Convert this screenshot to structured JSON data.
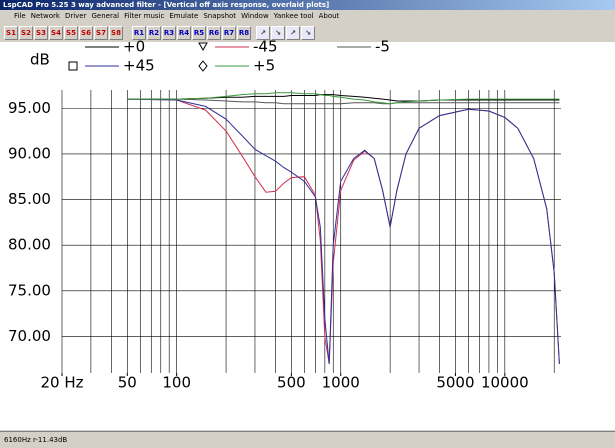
{
  "window": {
    "title": "LspCAD Pro 5.25 3 way advanced filter - [Vertical off axis response, overlaid plots]",
    "menu": [
      "File",
      "Network",
      "Driver",
      "General",
      "Filter music",
      "Emulate",
      "Snapshot",
      "Window",
      "Yankee tool",
      "About"
    ],
    "s_buttons": [
      "S1",
      "S2",
      "S3",
      "S4",
      "S5",
      "S6",
      "S7",
      "S8"
    ],
    "r_buttons": [
      "R1",
      "R2",
      "R3",
      "R4",
      "R5",
      "R6",
      "R7",
      "R8"
    ]
  },
  "status": "6160Hz r-11.43dB",
  "chart_data": {
    "type": "line",
    "y_label": "dB",
    "xscale": "log",
    "grid": true,
    "x": [
      50,
      100,
      150,
      200,
      250,
      300,
      350,
      400,
      450,
      500,
      600,
      700,
      750,
      800,
      850,
      900,
      1000,
      1200,
      1400,
      1600,
      1800,
      2000,
      2200,
      2500,
      3000,
      4000,
      6000,
      8000,
      10000,
      12000,
      15000,
      18000,
      20000,
      21500
    ],
    "series": [
      {
        "name": "+0",
        "color": "#000000",
        "values": [
          96,
          96,
          96.1,
          96.2,
          96.2,
          96.3,
          96.3,
          96.3,
          96.3,
          96.4,
          96.4,
          96.4,
          96.5,
          96.5,
          96.5,
          96.5,
          96.4,
          96.3,
          96.2,
          96.1,
          96,
          95.9,
          95.8,
          95.8,
          95.8,
          95.9,
          95.9,
          95.9,
          95.9,
          95.9,
          95.9,
          95.9,
          95.9,
          95.9
        ]
      },
      {
        "name": "-45",
        "color": "#d03050",
        "values": [
          96,
          95.9,
          94.8,
          92.5,
          89.8,
          87.5,
          85.8,
          85.9,
          86.8,
          87.4,
          87.5,
          85.5,
          80.5,
          70,
          67,
          78,
          86,
          89.3,
          90.3,
          89.5,
          86,
          82,
          86,
          90,
          92.8,
          94.2,
          94.9,
          94.7,
          94,
          92.8,
          89.5,
          84,
          77,
          67
        ]
      },
      {
        "name": "-5",
        "color": "#555555",
        "values": [
          96,
          96,
          95.9,
          95.8,
          95.7,
          95.7,
          95.6,
          95.6,
          95.5,
          95.5,
          95.5,
          95.5,
          95.5,
          95.5,
          95.5,
          95.5,
          95.5,
          95.6,
          95.6,
          95.6,
          95.5,
          95.5,
          95.6,
          95.6,
          95.6,
          95.6,
          95.6,
          95.6,
          95.6,
          95.6,
          95.6,
          95.6,
          95.6,
          95.6
        ]
      },
      {
        "name": "+45",
        "color": "#303098",
        "values": [
          96,
          95.9,
          95.2,
          93.8,
          92,
          90.5,
          89.8,
          89.2,
          88.5,
          88,
          87,
          85.3,
          82,
          72,
          67,
          80,
          87,
          89.5,
          90.4,
          89.5,
          86,
          82,
          86,
          90,
          92.8,
          94.2,
          94.9,
          94.7,
          94,
          92.8,
          89.5,
          84,
          77,
          67
        ]
      },
      {
        "name": "+5",
        "color": "#3a9a3a",
        "values": [
          96,
          96,
          96.1,
          96.3,
          96.5,
          96.6,
          96.6,
          96.7,
          96.7,
          96.7,
          96.6,
          96.6,
          96.5,
          96.4,
          96.4,
          96.3,
          96.2,
          96,
          95.9,
          95.7,
          95.6,
          95.5,
          95.6,
          95.7,
          95.8,
          95.9,
          96,
          96,
          96,
          96,
          96,
          96,
          96,
          96
        ]
      }
    ],
    "xlim": [
      20,
      22000
    ],
    "ylim": [
      66,
      97
    ],
    "xticks": [
      {
        "value": 20,
        "label": "20 Hz"
      },
      50,
      100,
      500,
      1000,
      5000,
      10000
    ],
    "xgrid": [
      20,
      30,
      40,
      50,
      60,
      70,
      80,
      90,
      100,
      200,
      300,
      400,
      500,
      600,
      700,
      800,
      900,
      1000,
      2000,
      3000,
      4000,
      5000,
      6000,
      7000,
      8000,
      9000,
      10000,
      20000
    ],
    "yticks": [
      {
        "value": 95,
        "label": "95.00"
      },
      {
        "value": 90,
        "label": "90.00"
      },
      {
        "value": 85,
        "label": "85.00"
      },
      {
        "value": 80,
        "label": "80.00"
      },
      {
        "value": 75,
        "label": "75.00"
      },
      {
        "value": 70,
        "label": "70.00"
      }
    ]
  }
}
